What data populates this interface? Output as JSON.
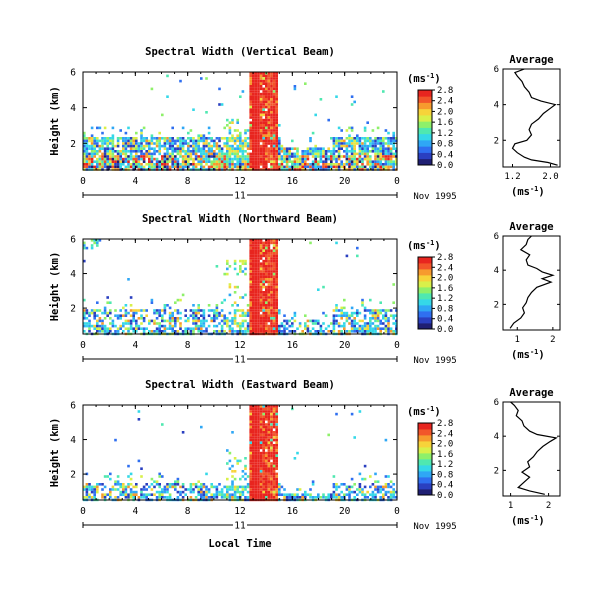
{
  "colors": [
    "#1f1f73",
    "#2a3fc0",
    "#2f6ff0",
    "#2fa7f5",
    "#35d8e8",
    "#4fe8b0",
    "#8ef06a",
    "#d9f04a",
    "#f7d33a",
    "#f79a2e",
    "#f2552a",
    "#e8251f"
  ],
  "date_label": "Nov 1995",
  "xlabel": "Local Time",
  "time_ticks": [
    "0",
    "4",
    "8",
    "12",
    "16",
    "20",
    "0"
  ],
  "day_label": "11",
  "chart_data": [
    {
      "type": "heatmap",
      "title": "Spectral Width (Vertical Beam)",
      "ylabel": "Height (km)",
      "y_ticks": [
        "2",
        "4",
        "6"
      ],
      "colorbar_unit": "(ms",
      "colorbar_ticks": [
        "0.0",
        "0.4",
        "0.8",
        "1.2",
        "1.6",
        "2.0",
        "2.4",
        "2.8"
      ],
      "x_range": [
        0,
        24
      ],
      "y_range": [
        0.5,
        6
      ],
      "avg_title": "Average",
      "avg_xticks": [
        "1.2",
        "2.0"
      ],
      "avg_xlim": [
        1.0,
        2.2
      ],
      "avg_ylim": [
        0.5,
        6
      ],
      "avg_yticks": [
        "2",
        "4",
        "6"
      ],
      "avg_xlabel": "(ms",
      "avg_profile": [
        [
          2.15,
          0.6
        ],
        [
          1.95,
          0.75
        ],
        [
          1.6,
          0.9
        ],
        [
          1.45,
          1.05
        ],
        [
          1.3,
          1.3
        ],
        [
          1.2,
          1.55
        ],
        [
          1.25,
          1.8
        ],
        [
          1.5,
          2.0
        ],
        [
          1.6,
          2.3
        ],
        [
          1.55,
          2.6
        ],
        [
          1.6,
          2.9
        ],
        [
          1.75,
          3.2
        ],
        [
          1.85,
          3.5
        ],
        [
          2.0,
          3.8
        ],
        [
          2.1,
          4.0
        ],
        [
          1.8,
          4.2
        ],
        [
          1.6,
          4.4
        ],
        [
          1.55,
          4.7
        ],
        [
          1.45,
          5.0
        ],
        [
          1.4,
          5.3
        ],
        [
          1.3,
          5.6
        ],
        [
          1.25,
          5.8
        ],
        [
          1.45,
          6.0
        ]
      ]
    },
    {
      "type": "heatmap",
      "title": "Spectral Width (Northward Beam)",
      "ylabel": "Height (km)",
      "y_ticks": [
        "2",
        "4",
        "6"
      ],
      "colorbar_unit": "(ms",
      "colorbar_ticks": [
        "0.0",
        "0.4",
        "0.8",
        "1.2",
        "1.6",
        "2.0",
        "2.4",
        "2.8"
      ],
      "x_range": [
        0,
        24
      ],
      "y_range": [
        0.5,
        6
      ],
      "avg_title": "Average",
      "avg_xticks": [
        "1",
        "2"
      ],
      "avg_xlim": [
        0.6,
        2.2
      ],
      "avg_ylim": [
        0.5,
        6
      ],
      "avg_yticks": [
        "2",
        "4",
        "6"
      ],
      "avg_xlabel": "(ms",
      "avg_profile": [
        [
          0.8,
          0.6
        ],
        [
          0.9,
          0.9
        ],
        [
          1.1,
          1.2
        ],
        [
          1.2,
          1.5
        ],
        [
          1.15,
          1.8
        ],
        [
          1.25,
          2.1
        ],
        [
          1.3,
          2.4
        ],
        [
          1.4,
          2.7
        ],
        [
          1.55,
          3.0
        ],
        [
          1.95,
          3.3
        ],
        [
          1.7,
          3.5
        ],
        [
          2.0,
          3.7
        ],
        [
          1.7,
          3.9
        ],
        [
          1.55,
          4.1
        ],
        [
          1.3,
          4.3
        ],
        [
          1.25,
          4.6
        ],
        [
          1.35,
          4.9
        ],
        [
          1.1,
          5.2
        ],
        [
          1.25,
          5.5
        ],
        [
          1.3,
          5.8
        ],
        [
          1.4,
          6.0
        ]
      ]
    },
    {
      "type": "heatmap",
      "title": "Spectral Width (Eastward Beam)",
      "ylabel": "Height (km)",
      "y_ticks": [
        "2",
        "4",
        "6"
      ],
      "colorbar_unit": "(ms",
      "colorbar_ticks": [
        "0.0",
        "0.4",
        "0.8",
        "1.2",
        "1.6",
        "2.0",
        "2.4",
        "2.8"
      ],
      "x_range": [
        0,
        24
      ],
      "y_range": [
        0.5,
        6
      ],
      "avg_title": "Average",
      "avg_xticks": [
        "1",
        "2"
      ],
      "avg_xlim": [
        0.8,
        2.3
      ],
      "avg_ylim": [
        0.5,
        6
      ],
      "avg_yticks": [
        "2",
        "4",
        "6"
      ],
      "avg_xlabel": "(ms",
      "avg_profile": [
        [
          1.9,
          0.6
        ],
        [
          1.5,
          0.8
        ],
        [
          1.2,
          1.0
        ],
        [
          1.35,
          1.3
        ],
        [
          1.5,
          1.6
        ],
        [
          1.3,
          1.9
        ],
        [
          1.5,
          2.2
        ],
        [
          1.45,
          2.5
        ],
        [
          1.6,
          2.8
        ],
        [
          1.7,
          3.1
        ],
        [
          1.85,
          3.4
        ],
        [
          2.05,
          3.7
        ],
        [
          2.2,
          3.9
        ],
        [
          1.7,
          4.1
        ],
        [
          1.5,
          4.3
        ],
        [
          1.35,
          4.6
        ],
        [
          1.3,
          4.9
        ],
        [
          1.15,
          5.2
        ],
        [
          1.2,
          5.5
        ],
        [
          1.1,
          5.8
        ],
        [
          1.0,
          6.0
        ]
      ]
    }
  ]
}
